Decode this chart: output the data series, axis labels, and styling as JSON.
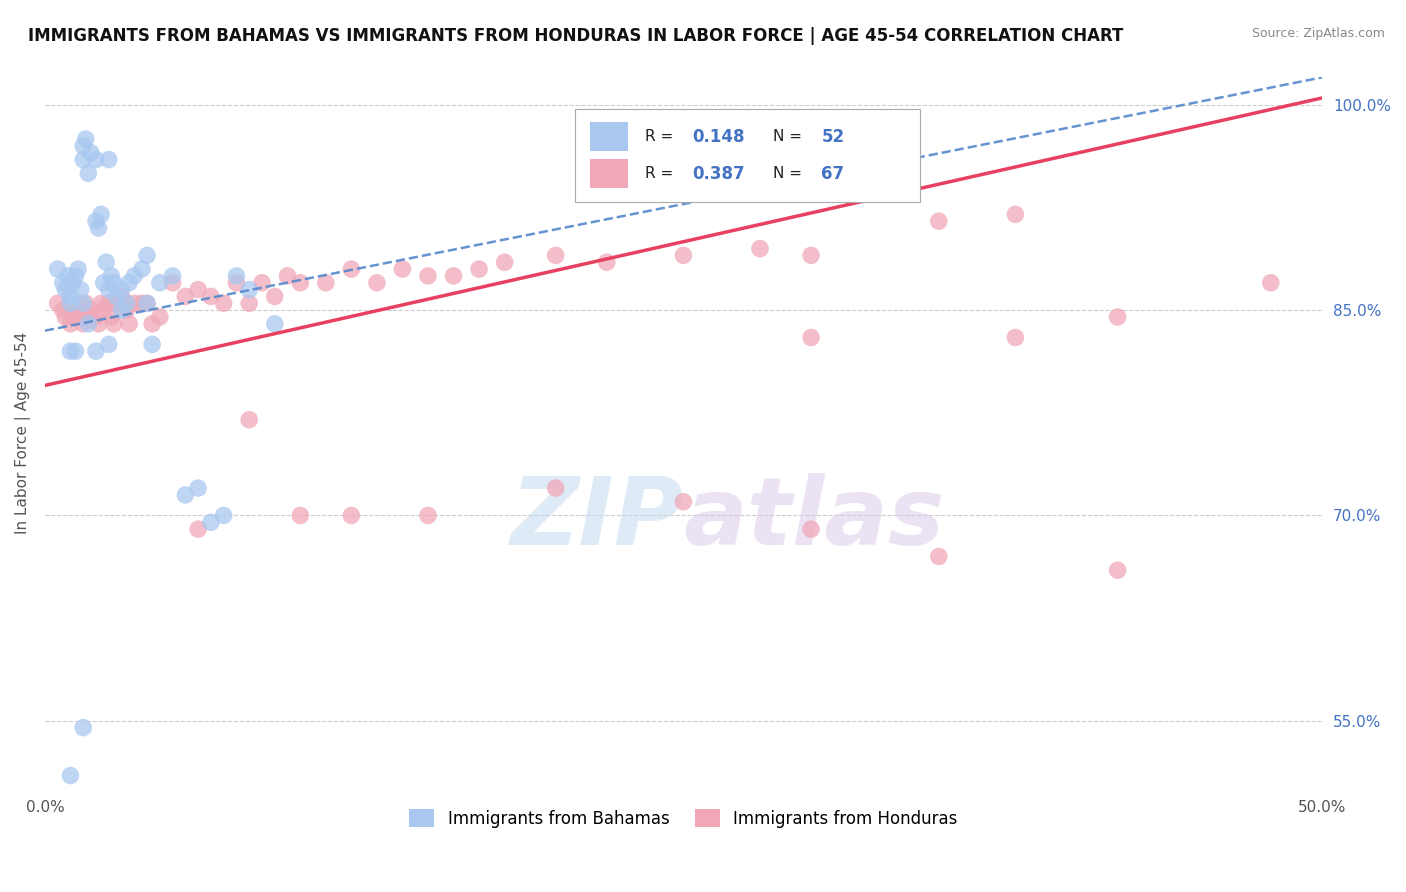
{
  "title": "IMMIGRANTS FROM BAHAMAS VS IMMIGRANTS FROM HONDURAS IN LABOR FORCE | AGE 45-54 CORRELATION CHART",
  "source": "Source: ZipAtlas.com",
  "ylabel": "In Labor Force | Age 45-54",
  "xlim": [
    0.0,
    0.5
  ],
  "ylim": [
    0.5,
    1.02
  ],
  "xticks": [
    0.0,
    0.1,
    0.2,
    0.3,
    0.4,
    0.5
  ],
  "xticklabels": [
    "0.0%",
    "",
    "",
    "",
    "",
    "50.0%"
  ],
  "ytick_positions": [
    0.55,
    0.7,
    0.85,
    1.0
  ],
  "ytick_labels": [
    "55.0%",
    "70.0%",
    "85.0%",
    "100.0%"
  ],
  "bahamas_R": 0.148,
  "bahamas_N": 52,
  "honduras_R": 0.387,
  "honduras_N": 67,
  "bahamas_color": "#a8c8f0",
  "honduras_color": "#f0a8b8",
  "bahamas_line_color": "#5588cc",
  "honduras_line_color": "#e84060",
  "legend_label_bahamas": "Immigrants from Bahamas",
  "legend_label_honduras": "Immigrants from Honduras",
  "bahamas_x": [
    0.005,
    0.007,
    0.008,
    0.009,
    0.01,
    0.01,
    0.011,
    0.012,
    0.013,
    0.014,
    0.015,
    0.015,
    0.016,
    0.017,
    0.018,
    0.02,
    0.02,
    0.021,
    0.022,
    0.023,
    0.024,
    0.025,
    0.025,
    0.026,
    0.027,
    0.028,
    0.03,
    0.032,
    0.033,
    0.035,
    0.038,
    0.04,
    0.042,
    0.045,
    0.05,
    0.055,
    0.06,
    0.065,
    0.07,
    0.075,
    0.08,
    0.09,
    0.01,
    0.012,
    0.015,
    0.017,
    0.02,
    0.025,
    0.03,
    0.04,
    0.015,
    0.01
  ],
  "bahamas_y": [
    0.88,
    0.87,
    0.865,
    0.875,
    0.86,
    0.855,
    0.87,
    0.875,
    0.88,
    0.865,
    0.96,
    0.97,
    0.975,
    0.95,
    0.965,
    0.96,
    0.915,
    0.91,
    0.92,
    0.87,
    0.885,
    0.865,
    0.96,
    0.875,
    0.87,
    0.86,
    0.865,
    0.855,
    0.87,
    0.875,
    0.88,
    0.89,
    0.825,
    0.87,
    0.875,
    0.715,
    0.72,
    0.695,
    0.7,
    0.875,
    0.865,
    0.84,
    0.82,
    0.82,
    0.855,
    0.84,
    0.82,
    0.825,
    0.85,
    0.855,
    0.545,
    0.51
  ],
  "honduras_x": [
    0.005,
    0.007,
    0.008,
    0.01,
    0.011,
    0.012,
    0.013,
    0.015,
    0.016,
    0.017,
    0.018,
    0.02,
    0.021,
    0.022,
    0.023,
    0.025,
    0.026,
    0.027,
    0.028,
    0.03,
    0.032,
    0.033,
    0.035,
    0.038,
    0.04,
    0.042,
    0.045,
    0.05,
    0.055,
    0.06,
    0.065,
    0.07,
    0.075,
    0.08,
    0.085,
    0.09,
    0.095,
    0.1,
    0.11,
    0.12,
    0.13,
    0.14,
    0.15,
    0.16,
    0.17,
    0.18,
    0.2,
    0.22,
    0.25,
    0.28,
    0.3,
    0.35,
    0.38,
    0.06,
    0.08,
    0.1,
    0.12,
    0.15,
    0.2,
    0.25,
    0.3,
    0.35,
    0.42,
    0.48,
    0.3,
    0.38,
    0.42
  ],
  "honduras_y": [
    0.855,
    0.85,
    0.845,
    0.84,
    0.845,
    0.85,
    0.845,
    0.84,
    0.855,
    0.845,
    0.85,
    0.845,
    0.84,
    0.855,
    0.85,
    0.855,
    0.845,
    0.84,
    0.855,
    0.86,
    0.85,
    0.84,
    0.855,
    0.855,
    0.855,
    0.84,
    0.845,
    0.87,
    0.86,
    0.865,
    0.86,
    0.855,
    0.87,
    0.855,
    0.87,
    0.86,
    0.875,
    0.87,
    0.87,
    0.88,
    0.87,
    0.88,
    0.875,
    0.875,
    0.88,
    0.885,
    0.89,
    0.885,
    0.89,
    0.895,
    0.89,
    0.915,
    0.92,
    0.69,
    0.77,
    0.7,
    0.7,
    0.7,
    0.72,
    0.71,
    0.69,
    0.67,
    0.66,
    0.87,
    0.83,
    0.83,
    0.845
  ],
  "watermark_zip": "ZIP",
  "watermark_atlas": "atlas",
  "background_color": "#ffffff",
  "grid_color": "#cccccc",
  "grid_linestyle": "--"
}
